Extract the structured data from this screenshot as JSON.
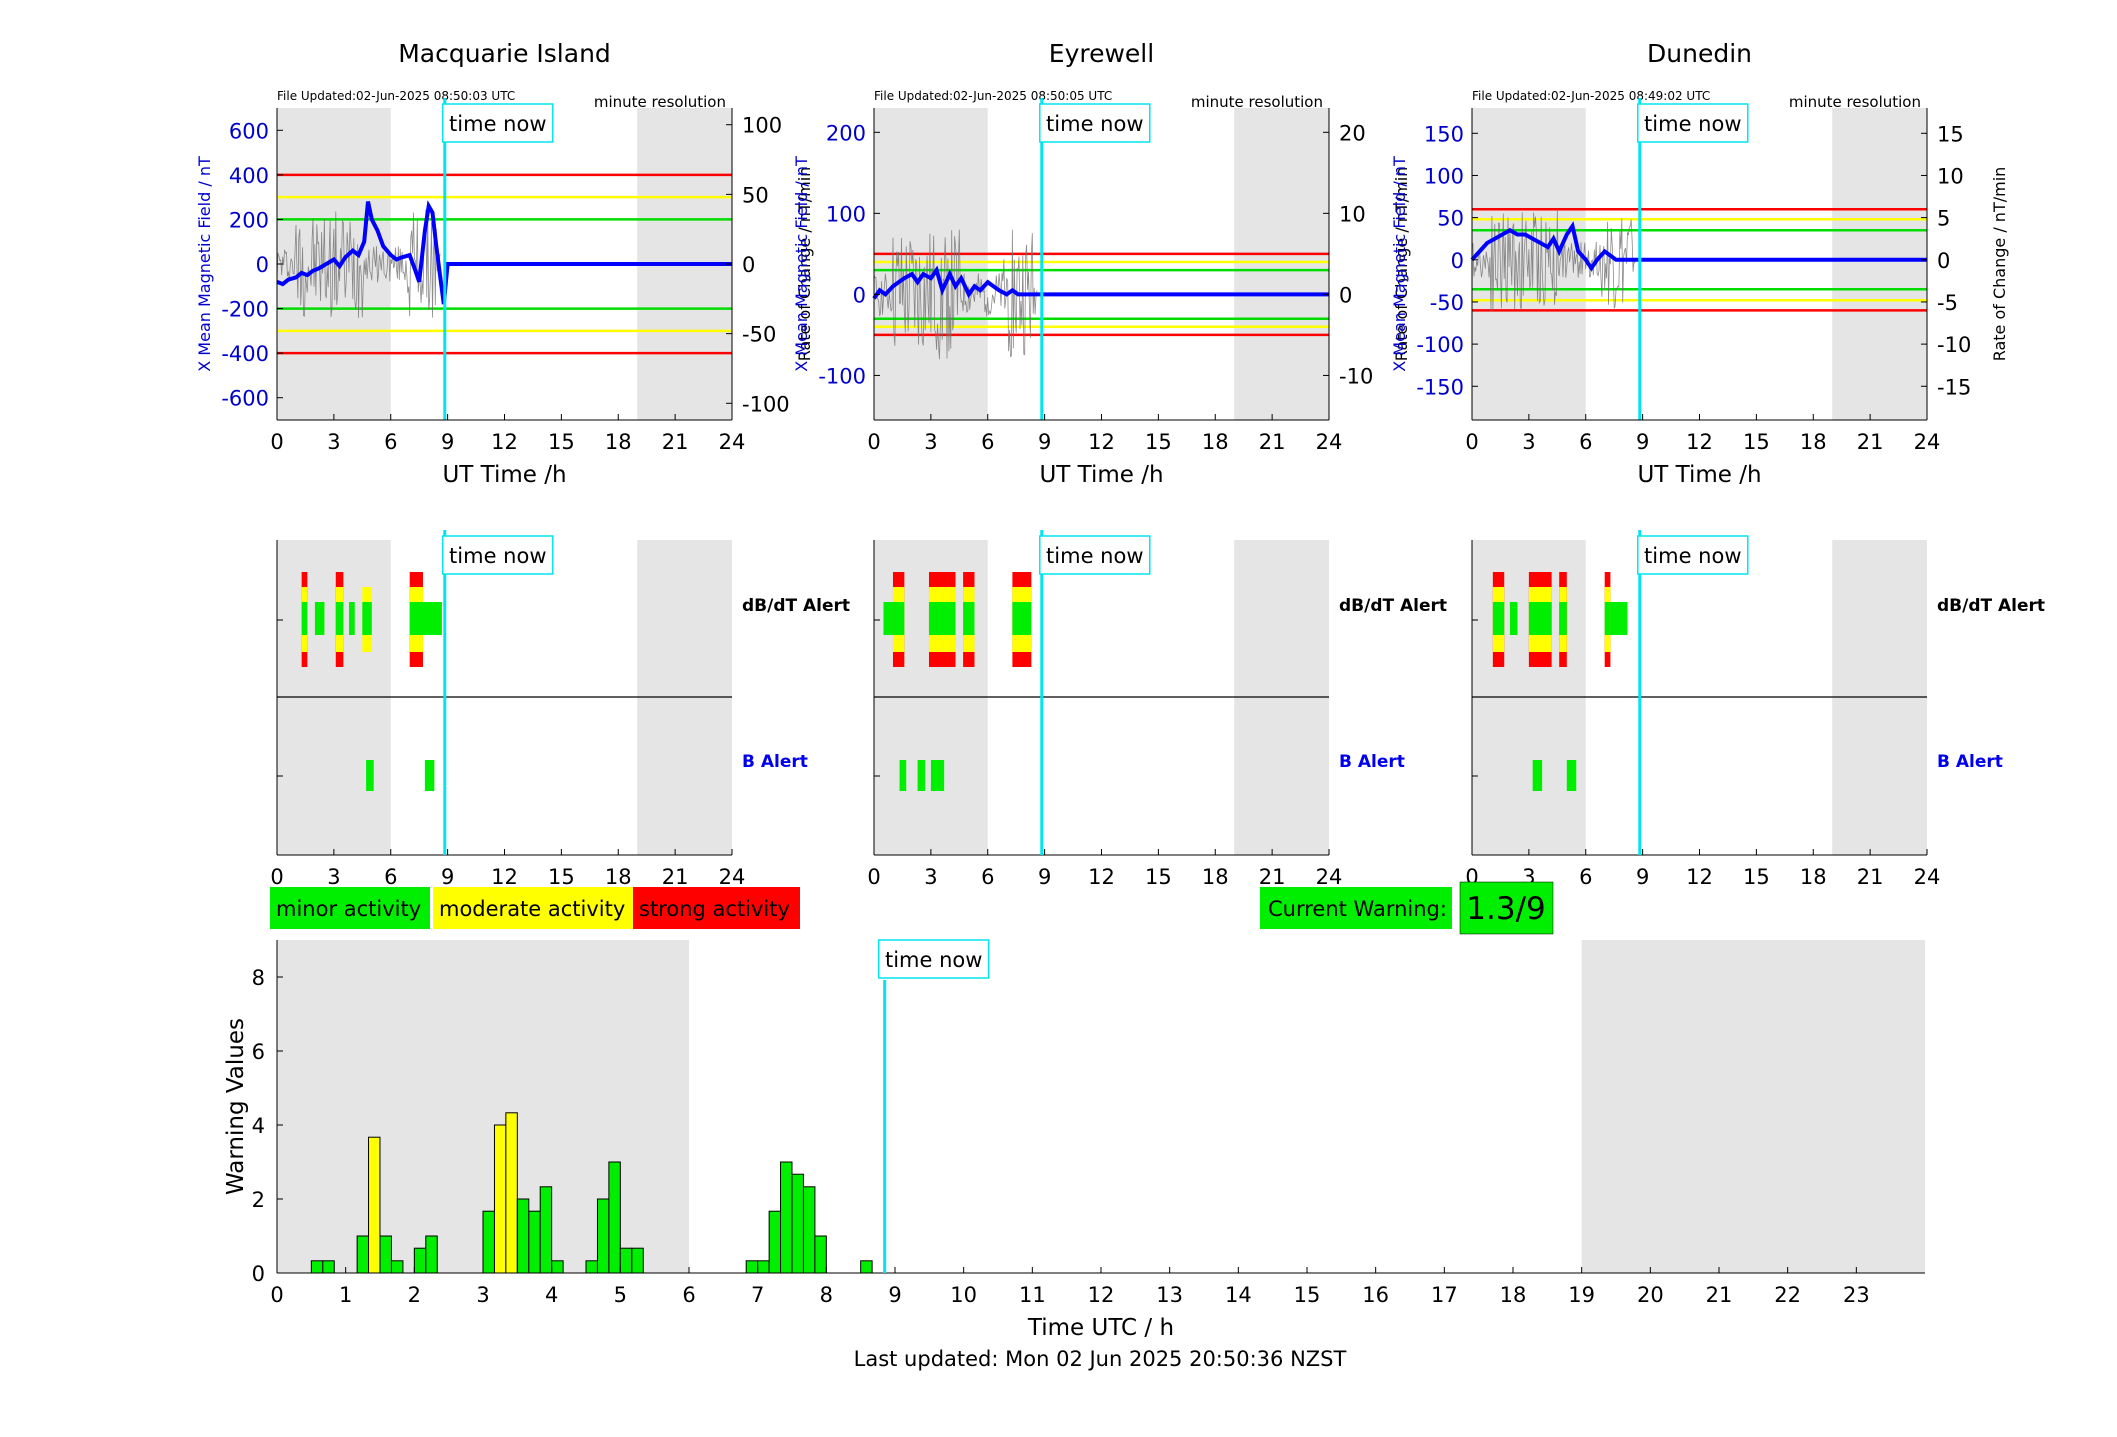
{
  "stations": [
    {
      "title": "Macquarie Island",
      "file_updated": "File Updated:02-Jun-2025 08:50:03 UTC",
      "resolution": "minute resolution",
      "left_ylabel": "X Mean Magnetic Field / nT",
      "right_ylabel": "Rate of Change / nT/min",
      "left_ylim": [
        -700,
        700
      ],
      "left_ticks": [
        -600,
        -400,
        -200,
        0,
        200,
        400,
        600
      ],
      "right_ylim": [
        -112,
        112
      ],
      "right_ticks": [
        -100,
        -50,
        0,
        50,
        100
      ],
      "hlines_b": [
        {
          "y": 400,
          "color": "#ff0000"
        },
        {
          "y": 300,
          "color": "#ffff00"
        },
        {
          "y": 200,
          "color": "#00dd00"
        },
        {
          "y": -200,
          "color": "#00dd00"
        },
        {
          "y": -300,
          "color": "#ffff00"
        },
        {
          "y": -400,
          "color": "#ff0000"
        }
      ],
      "b_series": [
        [
          0,
          -80
        ],
        [
          0.3,
          -90
        ],
        [
          0.6,
          -70
        ],
        [
          1,
          -60
        ],
        [
          1.3,
          -40
        ],
        [
          1.6,
          -50
        ],
        [
          1.9,
          -30
        ],
        [
          2.2,
          -20
        ],
        [
          2.6,
          0
        ],
        [
          3,
          20
        ],
        [
          3.3,
          -10
        ],
        [
          3.6,
          30
        ],
        [
          4,
          60
        ],
        [
          4.3,
          40
        ],
        [
          4.6,
          100
        ],
        [
          4.8,
          280
        ],
        [
          5,
          200
        ],
        [
          5.3,
          150
        ],
        [
          5.6,
          80
        ],
        [
          6,
          40
        ],
        [
          6.3,
          20
        ],
        [
          6.6,
          30
        ],
        [
          7,
          40
        ],
        [
          7.3,
          -30
        ],
        [
          7.5,
          -80
        ],
        [
          7.8,
          150
        ],
        [
          8,
          260
        ],
        [
          8.2,
          230
        ],
        [
          8.4,
          80
        ],
        [
          8.6,
          -50
        ],
        [
          8.8,
          -180
        ],
        [
          9,
          0
        ],
        [
          24,
          0
        ]
      ],
      "alert_dbdt": [
        {
          "x0": 1.3,
          "x1": 1.6,
          "level": "strong"
        },
        {
          "x0": 2.0,
          "x1": 2.5,
          "level": "minor"
        },
        {
          "x0": 3.1,
          "x1": 3.5,
          "level": "strong"
        },
        {
          "x0": 3.8,
          "x1": 4.1,
          "level": "minor"
        },
        {
          "x0": 4.5,
          "x1": 5.0,
          "level": "moderate"
        },
        {
          "x0": 7.0,
          "x1": 7.7,
          "level": "strong"
        },
        {
          "x0": 7.7,
          "x1": 8.7,
          "level": "minor"
        }
      ],
      "alert_b": [
        {
          "x0": 4.7,
          "x1": 5.1
        },
        {
          "x0": 7.8,
          "x1": 8.3
        }
      ]
    },
    {
      "title": "Eyrewell",
      "file_updated": "File Updated:02-Jun-2025 08:50:05 UTC",
      "resolution": "minute resolution",
      "left_ylabel": "X Mean Magnetic Field / nT",
      "right_ylabel": "Rate of Change / nT/min",
      "left_ylim": [
        -155,
        230
      ],
      "left_ticks": [
        -100,
        0,
        100,
        200
      ],
      "right_ylim": [
        -15.5,
        23
      ],
      "right_ticks": [
        -10,
        0,
        10,
        20
      ],
      "hlines_b": [
        {
          "y": 50,
          "color": "#ff0000"
        },
        {
          "y": 40,
          "color": "#ffff00"
        },
        {
          "y": 30,
          "color": "#00dd00"
        },
        {
          "y": -30,
          "color": "#00dd00"
        },
        {
          "y": -40,
          "color": "#ffff00"
        },
        {
          "y": -50,
          "color": "#ff0000"
        }
      ],
      "b_series": [
        [
          0,
          -5
        ],
        [
          0.3,
          5
        ],
        [
          0.6,
          0
        ],
        [
          1,
          10
        ],
        [
          1.3,
          15
        ],
        [
          1.6,
          20
        ],
        [
          2,
          25
        ],
        [
          2.3,
          15
        ],
        [
          2.6,
          25
        ],
        [
          3,
          20
        ],
        [
          3.3,
          30
        ],
        [
          3.6,
          5
        ],
        [
          4,
          25
        ],
        [
          4.3,
          10
        ],
        [
          4.6,
          20
        ],
        [
          5,
          0
        ],
        [
          5.3,
          10
        ],
        [
          5.6,
          5
        ],
        [
          6,
          15
        ],
        [
          6.3,
          10
        ],
        [
          6.6,
          5
        ],
        [
          7,
          0
        ],
        [
          7.3,
          5
        ],
        [
          7.6,
          0
        ],
        [
          8,
          0
        ],
        [
          24,
          0
        ]
      ],
      "alert_dbdt": [
        {
          "x0": 0.5,
          "x1": 1.0,
          "level": "minor"
        },
        {
          "x0": 1.0,
          "x1": 1.6,
          "level": "strong"
        },
        {
          "x0": 2.9,
          "x1": 4.3,
          "level": "strong"
        },
        {
          "x0": 4.7,
          "x1": 5.3,
          "level": "strong"
        },
        {
          "x0": 7.3,
          "x1": 8.3,
          "level": "strong"
        }
      ],
      "alert_b": [
        {
          "x0": 1.35,
          "x1": 1.7
        },
        {
          "x0": 2.3,
          "x1": 2.7
        },
        {
          "x0": 3.0,
          "x1": 3.7
        }
      ]
    },
    {
      "title": "Dunedin",
      "file_updated": "File Updated:02-Jun-2025 08:49:02 UTC",
      "resolution": "minute resolution",
      "left_ylabel": "X Mean Magnetic Field / nT",
      "right_ylabel": "Rate of Change / nT/min",
      "left_ylim": [
        -190,
        180
      ],
      "left_ticks": [
        -150,
        -100,
        -50,
        0,
        50,
        100,
        150
      ],
      "right_ylim": [
        -19,
        18
      ],
      "right_ticks": [
        -15,
        -10,
        -5,
        0,
        5,
        10,
        15
      ],
      "hlines_b": [
        {
          "y": 60,
          "color": "#ff0000"
        },
        {
          "y": 48,
          "color": "#ffff00"
        },
        {
          "y": 35,
          "color": "#00dd00"
        },
        {
          "y": -35,
          "color": "#00dd00"
        },
        {
          "y": -48,
          "color": "#ffff00"
        },
        {
          "y": -60,
          "color": "#ff0000"
        }
      ],
      "b_series": [
        [
          0,
          0
        ],
        [
          0.4,
          10
        ],
        [
          0.8,
          20
        ],
        [
          1.2,
          25
        ],
        [
          1.6,
          30
        ],
        [
          2,
          35
        ],
        [
          2.4,
          30
        ],
        [
          2.8,
          30
        ],
        [
          3.2,
          25
        ],
        [
          3.6,
          20
        ],
        [
          4,
          15
        ],
        [
          4.3,
          25
        ],
        [
          4.6,
          10
        ],
        [
          5,
          30
        ],
        [
          5.3,
          40
        ],
        [
          5.6,
          10
        ],
        [
          6,
          0
        ],
        [
          6.3,
          -10
        ],
        [
          6.6,
          0
        ],
        [
          7,
          10
        ],
        [
          7.3,
          5
        ],
        [
          7.6,
          0
        ],
        [
          8,
          0
        ],
        [
          24,
          0
        ]
      ],
      "alert_dbdt": [
        {
          "x0": 1.1,
          "x1": 1.7,
          "level": "strong"
        },
        {
          "x0": 2.0,
          "x1": 2.4,
          "level": "minor"
        },
        {
          "x0": 3.0,
          "x1": 4.2,
          "level": "strong"
        },
        {
          "x0": 4.6,
          "x1": 5.0,
          "level": "strong"
        },
        {
          "x0": 7.0,
          "x1": 7.3,
          "level": "strong"
        },
        {
          "x0": 7.3,
          "x1": 8.2,
          "level": "minor"
        }
      ],
      "alert_b": [
        {
          "x0": 3.2,
          "x1": 3.7
        },
        {
          "x0": 5.0,
          "x1": 5.5
        }
      ]
    }
  ],
  "top_xlabel": "UT Time /h",
  "x_ticks": [
    0,
    3,
    6,
    9,
    12,
    15,
    18,
    21,
    24
  ],
  "time_now_label": "time now",
  "time_now_h": 8.85,
  "night_bands_top": [
    [
      0,
      6
    ],
    [
      19,
      24
    ]
  ],
  "alert_labels": {
    "dbdt": "dB/dT Alert",
    "b": "B Alert"
  },
  "legend": {
    "minor": "minor activity",
    "moderate": "moderate activity",
    "strong": "strong activity"
  },
  "current_warning": {
    "label": "Current Warning:",
    "value": "1.3/9"
  },
  "colors": {
    "minor": "#00ee00",
    "moderate": "#ffff00",
    "strong": "#ff0000",
    "b_line": "#0000ff",
    "time_now": "#00e5ee",
    "night": "#e5e5e5"
  },
  "chart_data": {
    "type": "bar",
    "title": "",
    "xlabel": "Time UTC / h",
    "ylabel": "Warning Values",
    "xlim": [
      0,
      24
    ],
    "ylim": [
      0,
      9
    ],
    "y_ticks": [
      0,
      2,
      4,
      6,
      8
    ],
    "x_ticks": [
      0,
      1,
      2,
      3,
      4,
      5,
      6,
      7,
      8,
      9,
      10,
      11,
      12,
      13,
      14,
      15,
      16,
      17,
      18,
      19,
      20,
      21,
      22,
      23
    ],
    "night_bands": [
      [
        0,
        6
      ],
      [
        19,
        24
      ]
    ],
    "bin_width_h": 0.1667,
    "bars": [
      {
        "x": 0.5,
        "value": 0.33,
        "level": "minor"
      },
      {
        "x": 0.667,
        "value": 0.33,
        "level": "minor"
      },
      {
        "x": 1.167,
        "value": 1.0,
        "level": "minor"
      },
      {
        "x": 1.333,
        "value": 3.67,
        "level": "moderate"
      },
      {
        "x": 1.5,
        "value": 1.0,
        "level": "minor"
      },
      {
        "x": 1.667,
        "value": 0.33,
        "level": "minor"
      },
      {
        "x": 2.0,
        "value": 0.67,
        "level": "minor"
      },
      {
        "x": 2.167,
        "value": 1.0,
        "level": "minor"
      },
      {
        "x": 3.0,
        "value": 1.67,
        "level": "minor"
      },
      {
        "x": 3.167,
        "value": 4.0,
        "level": "moderate"
      },
      {
        "x": 3.333,
        "value": 4.33,
        "level": "moderate"
      },
      {
        "x": 3.5,
        "value": 2.0,
        "level": "minor"
      },
      {
        "x": 3.667,
        "value": 1.67,
        "level": "minor"
      },
      {
        "x": 3.833,
        "value": 2.33,
        "level": "minor"
      },
      {
        "x": 4.0,
        "value": 0.33,
        "level": "minor"
      },
      {
        "x": 4.5,
        "value": 0.33,
        "level": "minor"
      },
      {
        "x": 4.667,
        "value": 2.0,
        "level": "minor"
      },
      {
        "x": 4.833,
        "value": 3.0,
        "level": "minor"
      },
      {
        "x": 5.0,
        "value": 0.67,
        "level": "minor"
      },
      {
        "x": 5.167,
        "value": 0.67,
        "level": "minor"
      },
      {
        "x": 6.833,
        "value": 0.33,
        "level": "minor"
      },
      {
        "x": 7.0,
        "value": 0.33,
        "level": "minor"
      },
      {
        "x": 7.167,
        "value": 1.67,
        "level": "minor"
      },
      {
        "x": 7.333,
        "value": 3.0,
        "level": "minor"
      },
      {
        "x": 7.5,
        "value": 2.67,
        "level": "minor"
      },
      {
        "x": 7.667,
        "value": 2.33,
        "level": "minor"
      },
      {
        "x": 7.833,
        "value": 1.0,
        "level": "minor"
      },
      {
        "x": 8.5,
        "value": 0.33,
        "level": "minor"
      }
    ]
  },
  "footer": "Last updated: Mon 02 Jun 2025 20:50:36 NZST"
}
